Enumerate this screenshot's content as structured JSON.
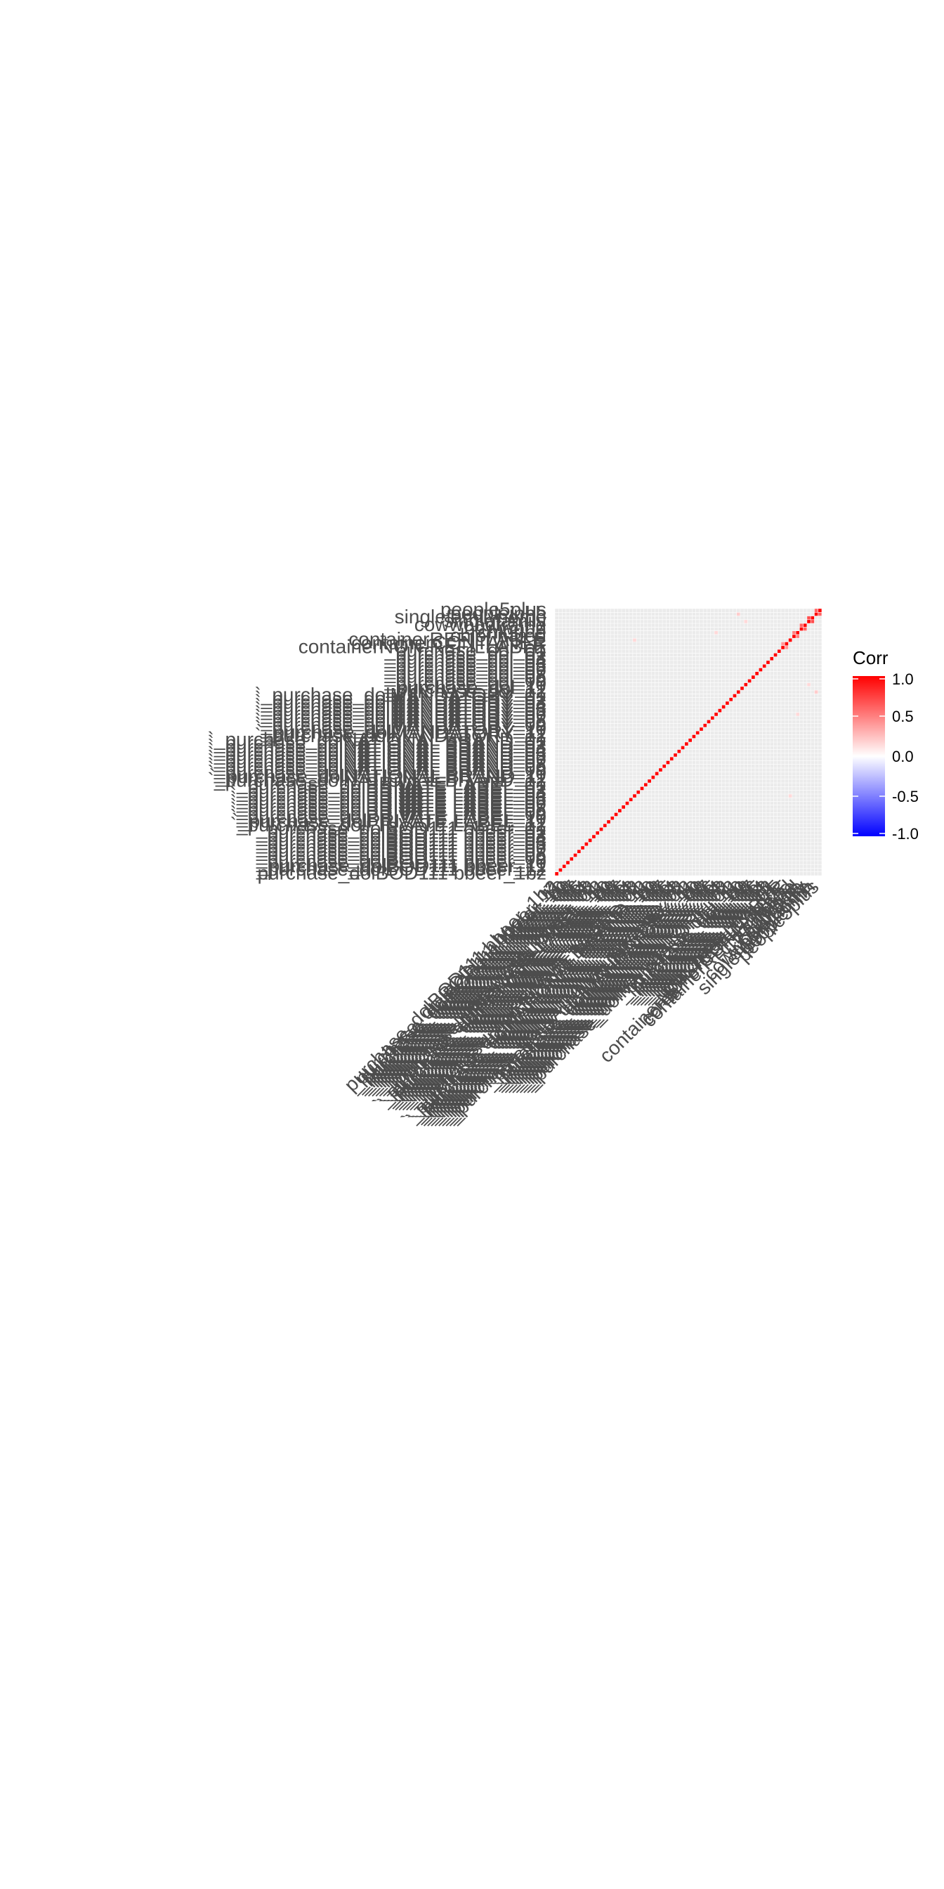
{
  "chart_data": {
    "type": "heatmap",
    "title": "",
    "xlabel": "",
    "ylabel": "",
    "variables": [
      "purchase_dolBOD111 bbeer_1bz",
      "_purchase_dolBOD111 bbeer_12",
      "_purchase_dolBOD111 bbeer_11",
      "_purchase_dolBOD111 bbeer_10",
      "_purchase_dolBOD111 bbeer_09",
      "_purchase_dolBOD111 bbeer_08",
      "_purchase_dolBOD111 bbeer_07",
      "_purchase_dolBOD111 bbeer_06",
      "_purchase_dolBOD111 bbeer_05",
      "_purchase_dolBOD111 bbeer_04",
      "_purchase_dolBOD111 bbeer_03",
      "_purchase_dolBOD111 bbeer_02",
      "_purchase_dolBOD111 bbeer_01",
      "`_purchase_dolPRIVATE LABEL_12",
      "`_purchase_dolPRIVATE LABEL_11",
      "`_purchase_dolPRIVATE LABEL_10",
      "`_purchase_dolPRIVATE LABEL_09",
      "`_purchase_dolPRIVATE LABEL_08",
      "`_purchase_dolPRIVATE LABEL_07",
      "`_purchase_dolPRIVATE LABEL_06",
      "`_purchase_dolPRIVATE LABEL_05",
      "`_purchase_dolPRIVATE LABEL_04",
      "`_purchase_dolPRIVATE LABEL_03",
      "`_purchase_dolPRIVATE LABEL_02",
      "`_purchase_dolPRIVATE LABEL_01",
      "`_purchase_dolNATIONAL BRAND_12",
      "`_purchase_dolNATIONAL BRAND_11",
      "`_purchase_dolNATIONAL BRAND_10",
      "`_purchase_dolNATIONAL BRAND_09",
      "`_purchase_dolNATIONAL BRAND_08",
      "`_purchase_dolNATIONAL BRAND_07",
      "`_purchase_dolNATIONAL BRAND_06",
      "`_purchase_dolNATIONAL BRAND_05",
      "`_purchase_dolNATIONAL BRAND_04",
      "`_purchase_dolNATIONAL BRAND_03",
      "`_purchase_dolNATIONAL BRAND_02",
      "`_purchase_dolNATIONAL BRAND_01",
      "`_purchase_dolMANDATORY_12",
      "`_purchase_dolMANDATORY_11",
      "`_purchase_dolMANDATORY_10",
      "`_purchase_dolMANDATORY_09",
      "`_purchase_dolMANDATORY_08",
      "`_purchase_dolMANDATORY_07",
      "`_purchase_dolMANDATORY_06",
      "`_purchase_dolMANDATORY_05",
      "`_purchase_dolMANDATORY_04",
      "`_purchase_dolMANDATORY_03",
      "`_purchase_dolMANDATORY_02",
      "`_purchase_dolMANDATORY_01",
      "_purchase_dol_12",
      "_purchase_dol_11",
      "_purchase_dol_10",
      "_purchase_dol_09",
      "_purchase_dol_08",
      "_purchase_dol_07",
      "_purchase_dol_06",
      "_purchase_dol_05",
      "_purchase_dol_04",
      "_purchase_dol_03",
      "_purchase_dol_02",
      "_purchase_dol_01",
      "containerNON-REFILLABLE",
      "containerCONTAINER",
      "containerREFILLABLE",
      "chlorinated",
      "chlorine",
      "cowwood",
      "cowwoodframe",
      "singlefamily",
      "singlefamilyhome",
      "peopleinhh",
      "people5plus"
    ],
    "diagonal": 1.0,
    "off_diagonal_typical": 0.0,
    "notable_correlations": [
      {
        "row": "people5plus",
        "col": "peopleinhh",
        "value": 0.6
      },
      {
        "row": "singlefamily",
        "col": "singlefamilyhome",
        "value": 0.7
      },
      {
        "row": "cowwood",
        "col": "cowwoodframe",
        "value": 0.6
      },
      {
        "row": "chlorinated",
        "col": "chlorine",
        "value": 0.5
      },
      {
        "row": "containerNON-REFILLABLE",
        "col": "containerCONTAINER",
        "value": 0.4
      },
      {
        "row": "peopleinhh",
        "col": "_purchase_dol_12",
        "value": 0.2
      },
      {
        "row": "singlefamily",
        "col": "_purchase_dol_10",
        "value": 0.15
      },
      {
        "row": "chlorine",
        "col": "`_purchase_dolMANDATORY_06",
        "value": 0.15
      },
      {
        "row": "containerREFILLABLE",
        "col": "`_purchase_dolPRIVATE LABEL_04",
        "value": 0.15
      }
    ],
    "legend": {
      "title": "Corr",
      "position": "right",
      "ticks": [
        "1.0",
        "0.5",
        "0.0",
        "-0.5",
        "-1.0"
      ],
      "range": [
        -1.0,
        1.0
      ],
      "colors": {
        "low": "#0000ff",
        "mid": "#ffffff",
        "high": "#ff0000"
      }
    },
    "x_tick_angle": 45,
    "grid": true
  },
  "style": {
    "tile_gray": "#ebebeb",
    "grid_line": "#ffffff",
    "tick_text": "#4d4d4d"
  }
}
